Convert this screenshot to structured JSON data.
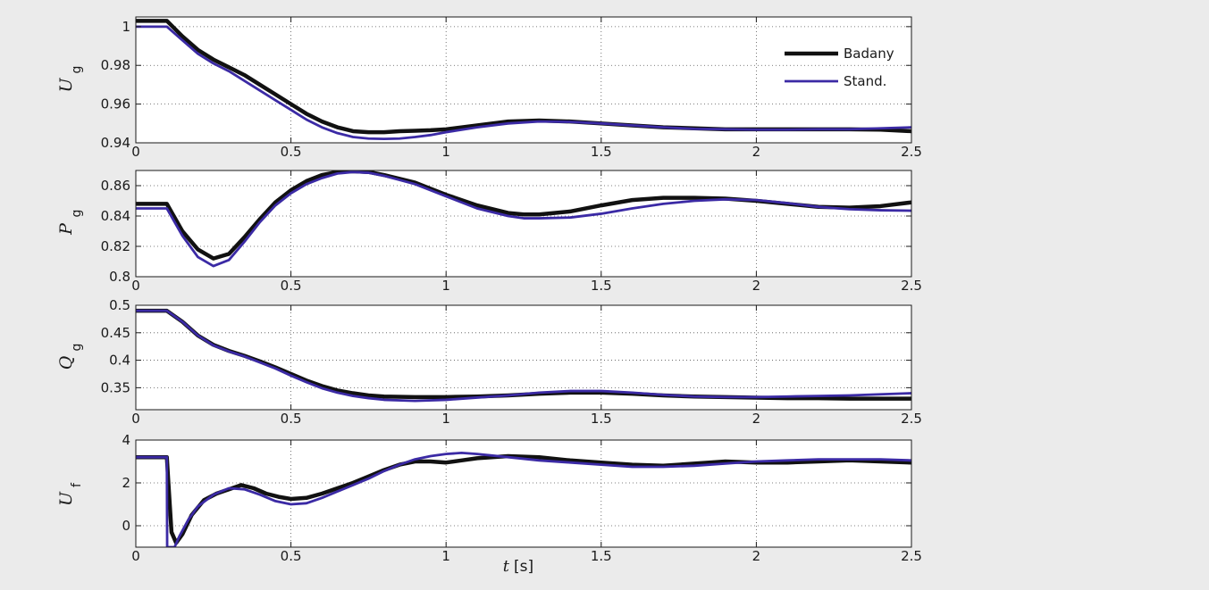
{
  "chart_data": [
    {
      "type": "line",
      "ylabel": "U",
      "ylabel_sub": "g",
      "xlim": [
        0,
        2.5
      ],
      "ylim": [
        0.94,
        1.005
      ],
      "xticks": [
        0,
        0.5,
        1,
        1.5,
        2,
        2.5
      ],
      "xtick_labels": [
        "0",
        "0.5",
        "1",
        "1.5",
        "2",
        "2.5"
      ],
      "yticks": [
        0.94,
        0.96,
        0.98,
        1
      ],
      "ytick_labels": [
        "0.94",
        "0.96",
        "0.98",
        "1"
      ],
      "grid": true,
      "legend": "top-right",
      "series": [
        {
          "name": "Badany",
          "color": "#111111",
          "x": [
            0,
            0.1,
            0.15,
            0.2,
            0.25,
            0.3,
            0.35,
            0.4,
            0.45,
            0.5,
            0.55,
            0.6,
            0.65,
            0.7,
            0.75,
            0.8,
            0.85,
            0.9,
            0.95,
            1.0,
            1.1,
            1.2,
            1.3,
            1.4,
            1.5,
            1.6,
            1.7,
            1.8,
            1.9,
            2.0,
            2.1,
            2.2,
            2.3,
            2.4,
            2.5
          ],
          "y": [
            1.003,
            1.003,
            0.995,
            0.988,
            0.983,
            0.979,
            0.975,
            0.97,
            0.965,
            0.96,
            0.955,
            0.951,
            0.948,
            0.946,
            0.9455,
            0.9455,
            0.946,
            0.9462,
            0.9465,
            0.947,
            0.949,
            0.951,
            0.9515,
            0.951,
            0.95,
            0.949,
            0.948,
            0.9475,
            0.947,
            0.947,
            0.947,
            0.947,
            0.947,
            0.9468,
            0.946
          ]
        },
        {
          "name": "Stand.",
          "color": "#3b2aa5",
          "x": [
            0,
            0.1,
            0.15,
            0.2,
            0.25,
            0.3,
            0.35,
            0.4,
            0.45,
            0.5,
            0.55,
            0.6,
            0.65,
            0.7,
            0.75,
            0.8,
            0.85,
            0.9,
            0.95,
            1.0,
            1.1,
            1.2,
            1.3,
            1.4,
            1.5,
            1.6,
            1.7,
            1.8,
            1.9,
            2.0,
            2.1,
            2.2,
            2.3,
            2.4,
            2.5
          ],
          "y": [
            1.0,
            1.0,
            0.993,
            0.986,
            0.981,
            0.977,
            0.972,
            0.967,
            0.962,
            0.957,
            0.952,
            0.948,
            0.945,
            0.943,
            0.9422,
            0.942,
            0.9422,
            0.943,
            0.944,
            0.9455,
            0.948,
            0.95,
            0.951,
            0.9508,
            0.95,
            0.949,
            0.948,
            0.9472,
            0.947,
            0.9468,
            0.9468,
            0.947,
            0.947,
            0.9475,
            0.948
          ]
        }
      ]
    },
    {
      "type": "line",
      "ylabel": "P",
      "ylabel_sub": "g",
      "xlim": [
        0,
        2.5
      ],
      "ylim": [
        0.8,
        0.87
      ],
      "xticks": [
        0,
        0.5,
        1,
        1.5,
        2,
        2.5
      ],
      "xtick_labels": [
        "0",
        "0.5",
        "1",
        "1.5",
        "2",
        "2.5"
      ],
      "yticks": [
        0.8,
        0.82,
        0.84,
        0.86
      ],
      "ytick_labels": [
        "0.8",
        "0.82",
        "0.84",
        "0.86"
      ],
      "grid": true,
      "series": [
        {
          "color": "#111111",
          "x": [
            0,
            0.1,
            0.15,
            0.2,
            0.25,
            0.3,
            0.35,
            0.4,
            0.45,
            0.5,
            0.55,
            0.6,
            0.65,
            0.7,
            0.75,
            0.8,
            0.9,
            1.0,
            1.1,
            1.2,
            1.25,
            1.3,
            1.4,
            1.5,
            1.6,
            1.7,
            1.8,
            1.9,
            2.0,
            2.1,
            2.2,
            2.3,
            2.4,
            2.5
          ],
          "y": [
            0.848,
            0.848,
            0.83,
            0.818,
            0.812,
            0.815,
            0.826,
            0.838,
            0.849,
            0.857,
            0.863,
            0.867,
            0.869,
            0.8695,
            0.869,
            0.867,
            0.862,
            0.854,
            0.847,
            0.842,
            0.841,
            0.841,
            0.843,
            0.847,
            0.8505,
            0.852,
            0.852,
            0.8515,
            0.85,
            0.848,
            0.846,
            0.8455,
            0.8465,
            0.849
          ]
        },
        {
          "color": "#3b2aa5",
          "x": [
            0,
            0.1,
            0.15,
            0.2,
            0.25,
            0.3,
            0.35,
            0.4,
            0.45,
            0.5,
            0.55,
            0.6,
            0.65,
            0.7,
            0.75,
            0.8,
            0.9,
            1.0,
            1.1,
            1.2,
            1.25,
            1.3,
            1.4,
            1.5,
            1.6,
            1.7,
            1.8,
            1.9,
            2.0,
            2.1,
            2.2,
            2.3,
            2.4,
            2.5
          ],
          "y": [
            0.845,
            0.845,
            0.827,
            0.813,
            0.807,
            0.811,
            0.823,
            0.836,
            0.847,
            0.855,
            0.861,
            0.865,
            0.868,
            0.869,
            0.8685,
            0.8665,
            0.861,
            0.853,
            0.845,
            0.84,
            0.8385,
            0.8385,
            0.839,
            0.8415,
            0.845,
            0.848,
            0.85,
            0.851,
            0.8505,
            0.8485,
            0.846,
            0.8445,
            0.8438,
            0.8435
          ]
        }
      ]
    },
    {
      "type": "line",
      "ylabel": "Q",
      "ylabel_sub": "g",
      "xlim": [
        0,
        2.5
      ],
      "ylim": [
        0.31,
        0.5
      ],
      "xticks": [
        0,
        0.5,
        1,
        1.5,
        2,
        2.5
      ],
      "xtick_labels": [
        "0",
        "0.5",
        "1",
        "1.5",
        "2",
        "2.5"
      ],
      "yticks": [
        0.35,
        0.4,
        0.45,
        0.5
      ],
      "ytick_labels": [
        "0.35",
        "0.4",
        "0.45",
        "0.5"
      ],
      "grid": true,
      "series": [
        {
          "color": "#111111",
          "x": [
            0,
            0.1,
            0.15,
            0.2,
            0.25,
            0.3,
            0.35,
            0.4,
            0.45,
            0.5,
            0.55,
            0.6,
            0.65,
            0.7,
            0.75,
            0.8,
            0.9,
            1.0,
            1.1,
            1.2,
            1.3,
            1.4,
            1.5,
            1.6,
            1.7,
            1.8,
            1.9,
            2.0,
            2.1,
            2.2,
            2.3,
            2.4,
            2.5
          ],
          "y": [
            0.49,
            0.49,
            0.47,
            0.445,
            0.428,
            0.417,
            0.408,
            0.398,
            0.387,
            0.375,
            0.363,
            0.353,
            0.345,
            0.34,
            0.336,
            0.334,
            0.333,
            0.333,
            0.334,
            0.336,
            0.339,
            0.341,
            0.341,
            0.339,
            0.336,
            0.334,
            0.333,
            0.332,
            0.331,
            0.331,
            0.33,
            0.33,
            0.33
          ]
        },
        {
          "color": "#3b2aa5",
          "x": [
            0,
            0.1,
            0.15,
            0.2,
            0.25,
            0.3,
            0.35,
            0.4,
            0.45,
            0.5,
            0.55,
            0.6,
            0.65,
            0.7,
            0.75,
            0.8,
            0.9,
            1.0,
            1.1,
            1.2,
            1.3,
            1.4,
            1.5,
            1.6,
            1.7,
            1.8,
            1.9,
            2.0,
            2.1,
            2.2,
            2.3,
            2.4,
            2.5
          ],
          "y": [
            0.49,
            0.49,
            0.47,
            0.445,
            0.427,
            0.416,
            0.407,
            0.396,
            0.385,
            0.372,
            0.36,
            0.349,
            0.341,
            0.335,
            0.331,
            0.328,
            0.326,
            0.328,
            0.332,
            0.336,
            0.341,
            0.344,
            0.344,
            0.341,
            0.337,
            0.334,
            0.333,
            0.333,
            0.334,
            0.335,
            0.336,
            0.338,
            0.34
          ]
        }
      ]
    },
    {
      "type": "line",
      "ylabel": "U",
      "ylabel_sub": "f",
      "xlabel": "t",
      "xlabel_unit": "[s]",
      "xlim": [
        0,
        2.5
      ],
      "ylim": [
        -1,
        4
      ],
      "xticks": [
        0,
        0.5,
        1,
        1.5,
        2,
        2.5
      ],
      "xtick_labels": [
        "0",
        "0.5",
        "1",
        "1.5",
        "2",
        "2.5"
      ],
      "yticks": [
        0,
        2,
        4
      ],
      "ytick_labels": [
        "0",
        "2",
        "4"
      ],
      "grid": true,
      "series": [
        {
          "color": "#111111",
          "x": [
            0,
            0.1,
            0.105,
            0.115,
            0.13,
            0.15,
            0.18,
            0.22,
            0.26,
            0.3,
            0.34,
            0.38,
            0.42,
            0.46,
            0.5,
            0.55,
            0.6,
            0.65,
            0.7,
            0.75,
            0.8,
            0.85,
            0.9,
            0.95,
            1.0,
            1.05,
            1.1,
            1.2,
            1.3,
            1.4,
            1.5,
            1.6,
            1.7,
            1.8,
            1.9,
            2.0,
            2.1,
            2.2,
            2.3,
            2.4,
            2.5
          ],
          "y": [
            3.2,
            3.2,
            2.0,
            -0.3,
            -0.8,
            -0.4,
            0.5,
            1.2,
            1.5,
            1.7,
            1.9,
            1.75,
            1.5,
            1.35,
            1.25,
            1.3,
            1.5,
            1.75,
            2.0,
            2.3,
            2.6,
            2.85,
            3.0,
            3.0,
            2.95,
            3.05,
            3.15,
            3.25,
            3.2,
            3.05,
            2.95,
            2.85,
            2.8,
            2.9,
            3.0,
            2.95,
            2.95,
            3.0,
            3.05,
            3.0,
            2.95
          ]
        },
        {
          "color": "#3b2aa5",
          "x": [
            0,
            0.1,
            0.101,
            0.11,
            0.125,
            0.14,
            0.17,
            0.2,
            0.25,
            0.3,
            0.35,
            0.4,
            0.45,
            0.5,
            0.55,
            0.6,
            0.65,
            0.7,
            0.75,
            0.8,
            0.85,
            0.9,
            0.95,
            1.0,
            1.05,
            1.1,
            1.2,
            1.3,
            1.4,
            1.5,
            1.6,
            1.7,
            1.8,
            1.9,
            2.0,
            2.1,
            2.2,
            2.3,
            2.4,
            2.5
          ],
          "y": [
            3.2,
            3.2,
            -1.0,
            -1.0,
            -1.0,
            -0.5,
            0.3,
            0.9,
            1.45,
            1.75,
            1.7,
            1.45,
            1.15,
            1.0,
            1.05,
            1.3,
            1.6,
            1.9,
            2.2,
            2.55,
            2.85,
            3.1,
            3.25,
            3.35,
            3.4,
            3.35,
            3.2,
            3.05,
            2.95,
            2.85,
            2.75,
            2.75,
            2.8,
            2.9,
            3.0,
            3.05,
            3.1,
            3.1,
            3.1,
            3.05
          ]
        }
      ]
    }
  ]
}
